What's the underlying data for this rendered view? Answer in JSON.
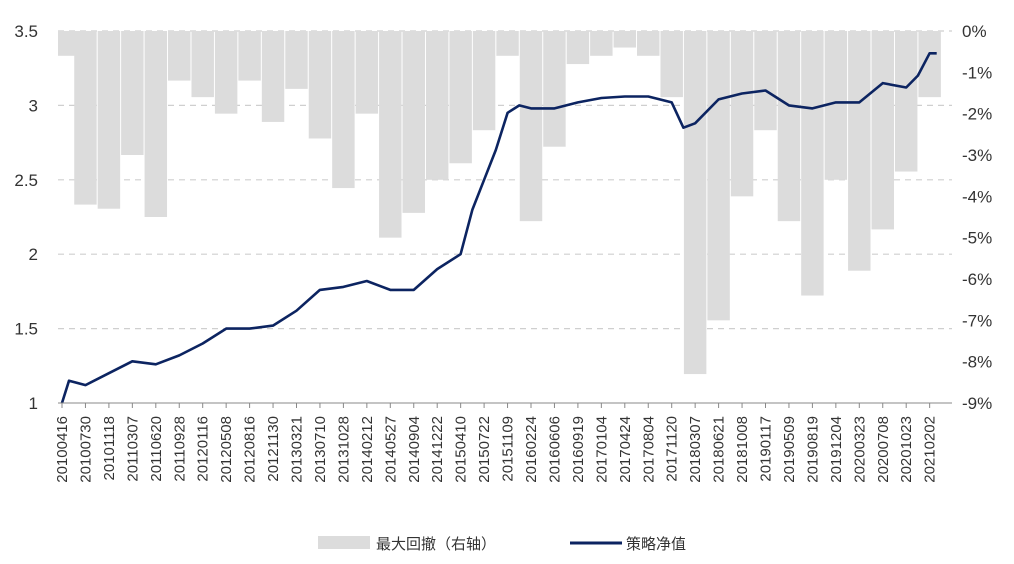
{
  "chart_data": {
    "type": "line",
    "title": "",
    "xlabel": "",
    "ylabel": "",
    "grid": true,
    "legend_position": "bottom",
    "colors": {
      "nav": "#0c2461",
      "drawdown": "#dcdcdc",
      "grid": "#cfcfcf",
      "axis_text": "#333333"
    },
    "y_left": {
      "ylim": [
        1,
        3.5
      ],
      "ticks": [
        1,
        1.5,
        2,
        2.5,
        3,
        3.5
      ],
      "tick_labels": [
        "1",
        "1.5",
        "2",
        "2.5",
        "3",
        "3.5"
      ]
    },
    "y_right": {
      "ylim": [
        -9,
        0
      ],
      "ticks": [
        0,
        -1,
        -2,
        -3,
        -4,
        -5,
        -6,
        -7,
        -8,
        -9
      ],
      "tick_labels": [
        "0%",
        "-1%",
        "-2%",
        "-3%",
        "-4%",
        "-5%",
        "-6%",
        "-7%",
        "-8%",
        "-9%"
      ]
    },
    "x_tick_labels": [
      "20100416",
      "20100730",
      "20101118",
      "20110307",
      "20110620",
      "20110928",
      "20120116",
      "20120508",
      "20120816",
      "20121130",
      "20130321",
      "20130710",
      "20131028",
      "20140212",
      "20140527",
      "20140904",
      "20141222",
      "20150410",
      "20150722",
      "20151109",
      "20160224",
      "20160606",
      "20160919",
      "20170104",
      "20170424",
      "20170804",
      "20171120",
      "20180307",
      "20180621",
      "20181008",
      "20190117",
      "20190509",
      "20190819",
      "20191204",
      "20200323",
      "20200708",
      "20201023",
      "20210202"
    ],
    "series": [
      {
        "name": "最大回撤（右轴）",
        "type": "area",
        "axis": "right",
        "x_index": [
          0,
          1,
          2,
          3,
          4,
          5,
          6,
          7,
          8,
          9,
          10,
          11,
          12,
          13,
          14,
          15,
          16,
          17,
          18,
          19,
          20,
          21,
          22,
          23,
          24,
          25,
          26,
          27,
          28,
          29,
          30,
          31,
          32,
          33,
          34,
          35,
          36,
          37
        ],
        "values": [
          -0.6,
          -4.2,
          -4.3,
          -3.0,
          -4.5,
          -1.2,
          -1.6,
          -2.0,
          -1.2,
          -2.2,
          -1.4,
          -2.6,
          -3.8,
          -2.0,
          -5.0,
          -4.4,
          -3.6,
          -3.2,
          -2.4,
          -0.6,
          -4.6,
          -2.8,
          -0.8,
          -0.6,
          -0.4,
          -0.6,
          -1.6,
          -8.3,
          -7.0,
          -4.0,
          -2.4,
          -4.6,
          -6.4,
          -3.6,
          -5.8,
          -4.8,
          -3.4,
          -1.6
        ]
      },
      {
        "name": "策略净值",
        "type": "line",
        "axis": "left",
        "x_index": [
          0,
          0.3,
          1,
          2,
          3,
          4,
          5,
          6,
          7,
          8,
          9,
          10,
          11,
          12,
          13,
          14,
          15,
          16,
          17,
          17.5,
          18,
          18.5,
          19,
          19.5,
          20,
          21,
          22,
          23,
          24,
          25,
          26,
          26.5,
          27,
          28,
          29,
          30,
          31,
          32,
          33,
          34,
          35,
          36,
          36.5,
          37,
          37.3
        ],
        "values": [
          1.0,
          1.15,
          1.12,
          1.2,
          1.28,
          1.26,
          1.32,
          1.4,
          1.5,
          1.5,
          1.52,
          1.62,
          1.76,
          1.78,
          1.82,
          1.76,
          1.76,
          1.9,
          2.0,
          2.3,
          2.5,
          2.7,
          2.95,
          3.0,
          2.98,
          2.98,
          3.02,
          3.05,
          3.06,
          3.06,
          3.02,
          2.85,
          2.88,
          3.04,
          3.08,
          3.1,
          3.0,
          2.98,
          3.02,
          3.02,
          3.15,
          3.12,
          3.2,
          3.35,
          3.35
        ]
      }
    ]
  },
  "legend": {
    "items": [
      {
        "label": "最大回撤（右轴）"
      },
      {
        "label": "策略净值"
      }
    ]
  }
}
